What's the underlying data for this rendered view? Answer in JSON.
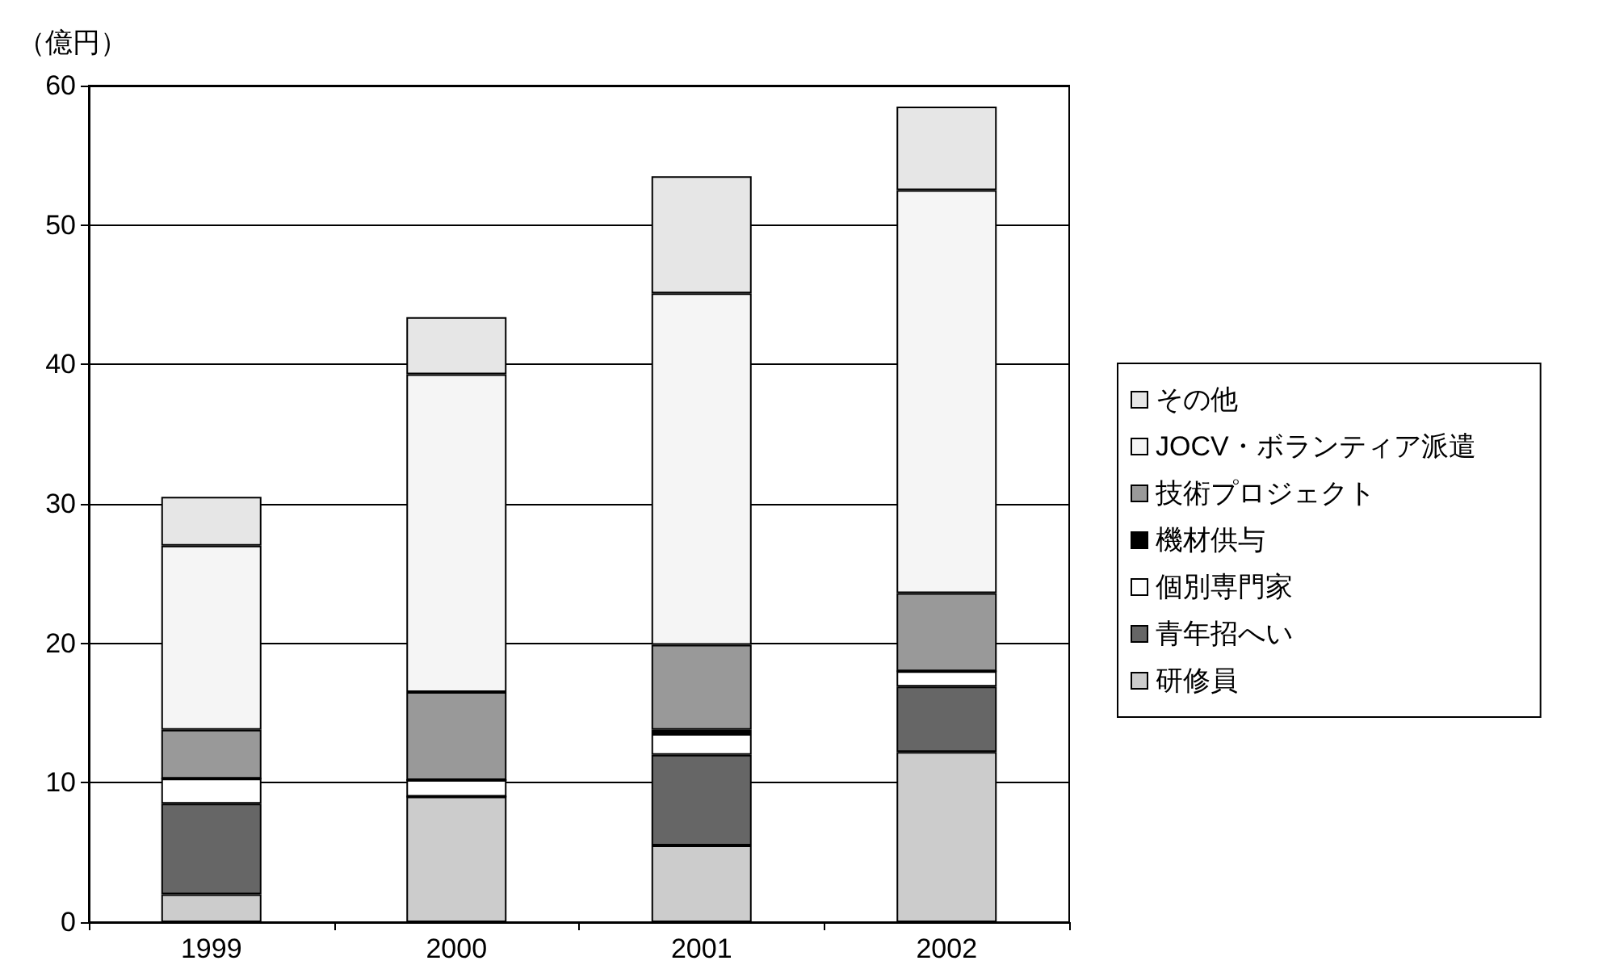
{
  "chart_data": {
    "type": "bar",
    "stacked": true,
    "ylabel": "（億円）",
    "categories": [
      "1999",
      "2000",
      "2001",
      "2002"
    ],
    "series": [
      {
        "name": "研修員",
        "color": "#cccccc",
        "values": [
          2.0,
          9.0,
          5.5,
          12.2
        ]
      },
      {
        "name": "青年招へい",
        "color": "#666666",
        "values": [
          6.5,
          0,
          6.5,
          4.7
        ]
      },
      {
        "name": "個別専門家",
        "color": "#ffffff",
        "values": [
          1.8,
          1.2,
          1.5,
          1.1
        ]
      },
      {
        "name": "機材供与",
        "color": "#000000",
        "values": [
          0,
          0,
          0.3,
          0
        ]
      },
      {
        "name": "技術プロジェクト",
        "color": "#999999",
        "values": [
          3.5,
          6.3,
          6.1,
          5.6
        ]
      },
      {
        "name": "JOCV・ボランティア派遣",
        "color": "#f5f5f5",
        "values": [
          13.2,
          22.8,
          25.2,
          28.9
        ]
      },
      {
        "name": "その他",
        "color": "#e6e6e6",
        "values": [
          3.5,
          4.1,
          8.4,
          6.0
        ]
      }
    ],
    "ylim": [
      0,
      60
    ],
    "yticks": [
      0,
      10,
      20,
      30,
      40,
      50,
      60
    ],
    "grid": "y",
    "legend": "right"
  }
}
